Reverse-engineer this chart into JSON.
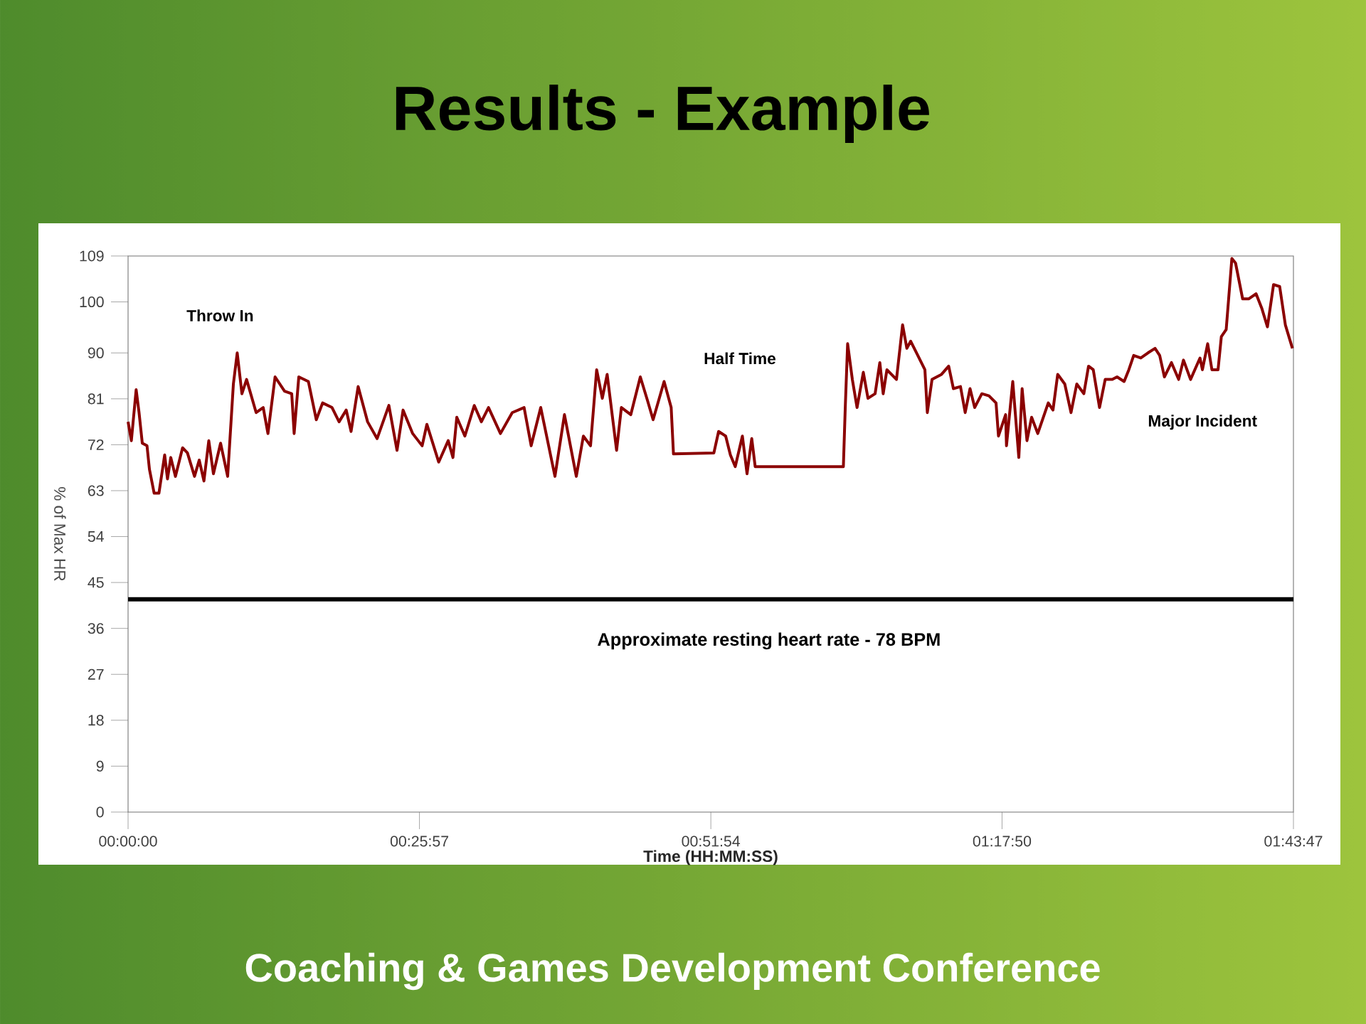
{
  "chart_data": {
    "type": "line",
    "title": "Results - Example",
    "xlabel": "Time (HH:MM:SS)",
    "ylabel": "% of Max HR",
    "color": "#8b0000",
    "x": [
      0,
      0.0049,
      0.012,
      0.0163,
      0.0211,
      0.0281,
      0.0317,
      0.0387,
      0.0458,
      0.0543,
      0.0585,
      0.0634,
      0.0703,
      0.0809,
      0.0881,
      0.0986,
      0.1056,
      0.1126,
      0.1198,
      0.1267,
      0.1373,
      0.1478,
      0.1563,
      0.162,
      0.169,
      0.1759,
      0.1901,
      0.2006,
      0.2076,
      0.2182,
      0.2323,
      0.2429,
      0.2465,
      0.2534,
      0.2676,
      0.2794,
      0.2887,
      0.3027,
      0.3132,
      0.3238,
      0.331,
      0.3415,
      0.3555,
      0.3696,
      0.3871,
      0.3992,
      0.4082,
      0.4224,
      0.4365,
      0.4435,
      0.4611,
      0.4752,
      0.4822,
      0.4879,
      0.4999,
      0.5139,
      0.5244,
      0.535,
      0.5527,
      0.5702,
      0.5878,
      0.5983,
      0.6125,
      0.6336,
      0.6477,
      0.6653,
      0.6758,
      0.6864,
      0.6955,
      0.7039,
      0.7111,
      0.7251,
      0.7322,
      0.7462,
      0.7603,
      0.7709,
      0.7793,
      0.7956,
      0.8061,
      0.8095,
      0.8695,
      0.8765,
      0.887,
      0.894,
      0.9012,
      0.9118,
      0.9187,
      0.9257,
      0.9308,
      1.0617,
      1.0645,
      1.068,
      1.075,
      1.082,
      1.0913,
      1.0982,
      1.1088,
      1.1158,
      1.1208,
      1.1263,
      1.1405,
      1.1496,
      1.1559,
      1.1616,
      1.1722,
      1.1827,
      1.1863,
      1.1933,
      1.2074,
      1.218,
      1.225,
      1.2355,
      1.2425,
      1.2497,
      1.2566,
      1.2672,
      1.2778,
      1.2883,
      1.2919,
      1.3025,
      1.3038,
      1.3131,
      1.3221,
      1.327,
      1.3342,
      1.3411,
      1.3502,
      1.3658,
      1.3728,
      1.3798,
      1.3903,
      1.3996,
      1.4081,
      1.4186,
      1.4256,
      1.4326,
      1.4419,
      1.4503,
      1.4609,
      1.4679,
      1.4784,
      1.4854,
      1.4926,
      1.5031,
      1.5137,
      1.5243,
      1.5312,
      1.5382,
      1.5487,
      1.5593,
      1.5665,
      1.577,
      1.591,
      1.5946,
      1.6024,
      1.6087,
      1.6178,
      1.6227,
      1.6299,
      1.6383,
      1.6438,
      1.6543,
      1.6636,
      1.6742,
      1.6826,
      1.6911,
      1.7002,
      1.7093,
      1.7177,
      1.7282
    ],
    "values": [
      76.5,
      72.8,
      82.8,
      78.3,
      72.3,
      71.8,
      67.2,
      62.5,
      62.5,
      70.0,
      65.3,
      69.5,
      65.8,
      71.4,
      70.4,
      65.8,
      69.0,
      64.9,
      72.8,
      66.3,
      72.3,
      65.8,
      83.9,
      90.0,
      82.0,
      84.8,
      78.3,
      79.3,
      74.2,
      85.3,
      82.5,
      82.0,
      74.2,
      85.3,
      84.4,
      76.9,
      80.2,
      79.3,
      76.5,
      78.8,
      74.6,
      83.4,
      76.5,
      73.2,
      79.7,
      70.9,
      78.8,
      74.2,
      71.8,
      76.0,
      68.6,
      72.8,
      69.5,
      77.4,
      73.7,
      79.7,
      76.5,
      79.3,
      74.2,
      78.3,
      79.3,
      71.8,
      79.3,
      65.8,
      77.9,
      65.8,
      73.7,
      71.8,
      86.7,
      81.1,
      85.8,
      70.9,
      79.3,
      77.9,
      85.3,
      80.7,
      76.9,
      84.4,
      79.3,
      70.2,
      70.4,
      74.6,
      73.7,
      70.0,
      67.7,
      73.7,
      66.3,
      73.2,
      67.7,
      67.7,
      79.3,
      91.8,
      84.8,
      79.3,
      86.2,
      81.1,
      82.0,
      88.1,
      82.0,
      86.7,
      84.8,
      95.5,
      90.9,
      92.3,
      89.5,
      86.7,
      78.3,
      84.8,
      85.8,
      87.4,
      83.0,
      83.4,
      78.3,
      83.0,
      79.3,
      82.0,
      81.6,
      80.2,
      73.7,
      77.9,
      71.8,
      84.4,
      69.5,
      83.0,
      72.8,
      77.4,
      74.2,
      80.2,
      78.8,
      85.8,
      83.9,
      78.3,
      83.9,
      82.0,
      87.4,
      86.7,
      79.3,
      84.8,
      84.8,
      85.3,
      84.4,
      86.7,
      89.5,
      89.0,
      90.0,
      90.9,
      89.5,
      85.3,
      88.1,
      84.8,
      88.6,
      84.8,
      89.0,
      86.7,
      91.8,
      86.7,
      86.7,
      93.2,
      94.6,
      108.5,
      107.6,
      100.6,
      100.6,
      101.6,
      98.8,
      95.1,
      103.4,
      103.0,
      95.5,
      90.9
    ],
    "xlim": [
      0,
      1.7297
    ],
    "ylim": [
      0,
      109
    ],
    "xticks": [
      {
        "value": 0,
        "label": "00:00:00"
      },
      {
        "value": 0.4325,
        "label": "00:25:57"
      },
      {
        "value": 0.865,
        "label": "00:51:54"
      },
      {
        "value": 1.2972,
        "label": "01:17:50"
      },
      {
        "value": 1.7297,
        "label": "01:43:47"
      }
    ],
    "yticks": [
      0,
      9,
      18,
      27,
      36,
      45,
      54,
      63,
      72,
      81,
      90,
      100,
      109
    ],
    "ref_lines": [
      {
        "axis": "y",
        "value": 41.7,
        "label": "Approximate resting heart rate - 78 BPM",
        "color": "#000000"
      }
    ],
    "annotations": [
      "Throw In",
      "Half Time",
      "Major Incident",
      "Coaching & Games Development Conference"
    ]
  }
}
